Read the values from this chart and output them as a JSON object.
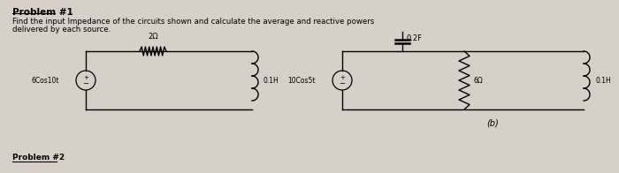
{
  "background_color": "#d6d0c8",
  "title": "Problem #1",
  "description_line1": "Find the input Impedance of the circuits shown and calculate the average and reactive powers",
  "description_line2": "delivered by each source.",
  "problem2_label": "Problem #2",
  "circuit_a": {
    "source_label": "6Cos10t",
    "resistor_label": "2Ω",
    "inductor_label": "0.1H"
  },
  "circuit_b": {
    "source_label": "10Cos5t",
    "capacitor_label": "0.2F",
    "resistor_label": "6Ω",
    "inductor_label": "0.1H",
    "sub_label": "(b)"
  }
}
